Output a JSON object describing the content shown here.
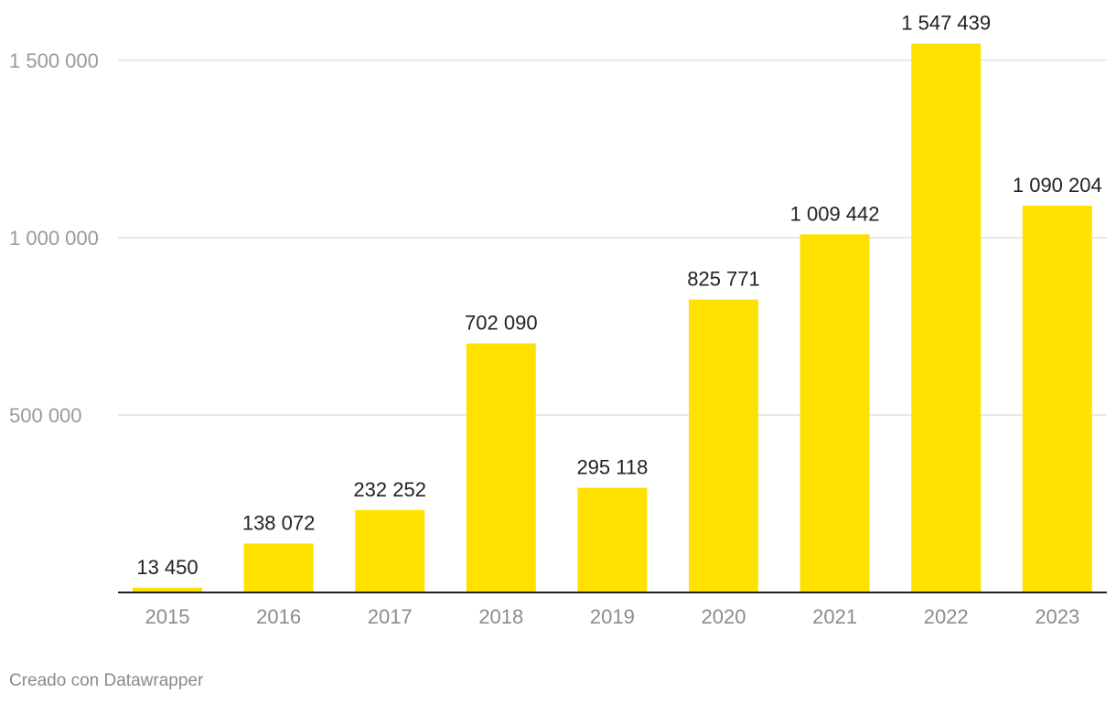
{
  "chart_data": {
    "type": "bar",
    "categories": [
      "2015",
      "2016",
      "2017",
      "2018",
      "2019",
      "2020",
      "2021",
      "2022",
      "2023"
    ],
    "values": [
      13450,
      138072,
      232252,
      702090,
      295118,
      825771,
      1009442,
      1547439,
      1090204
    ],
    "value_labels": [
      "13 450",
      "138 072",
      "232 252",
      "702 090",
      "295 118",
      "825 771",
      "1 009 442",
      "1 547 439",
      "1 090 204"
    ],
    "yticks": [
      500000,
      1000000,
      1500000
    ],
    "ytick_labels": [
      "500 000",
      "1 000 000",
      "1 500 000"
    ],
    "ylim": [
      0,
      1600000
    ],
    "grid": true,
    "title": "",
    "xlabel": "",
    "ylabel": ""
  },
  "colors": {
    "bar": "#ffe100",
    "grid": "#e0e0e0",
    "axis": "#222222"
  },
  "footer": {
    "credit": "Creado con Datawrapper"
  }
}
